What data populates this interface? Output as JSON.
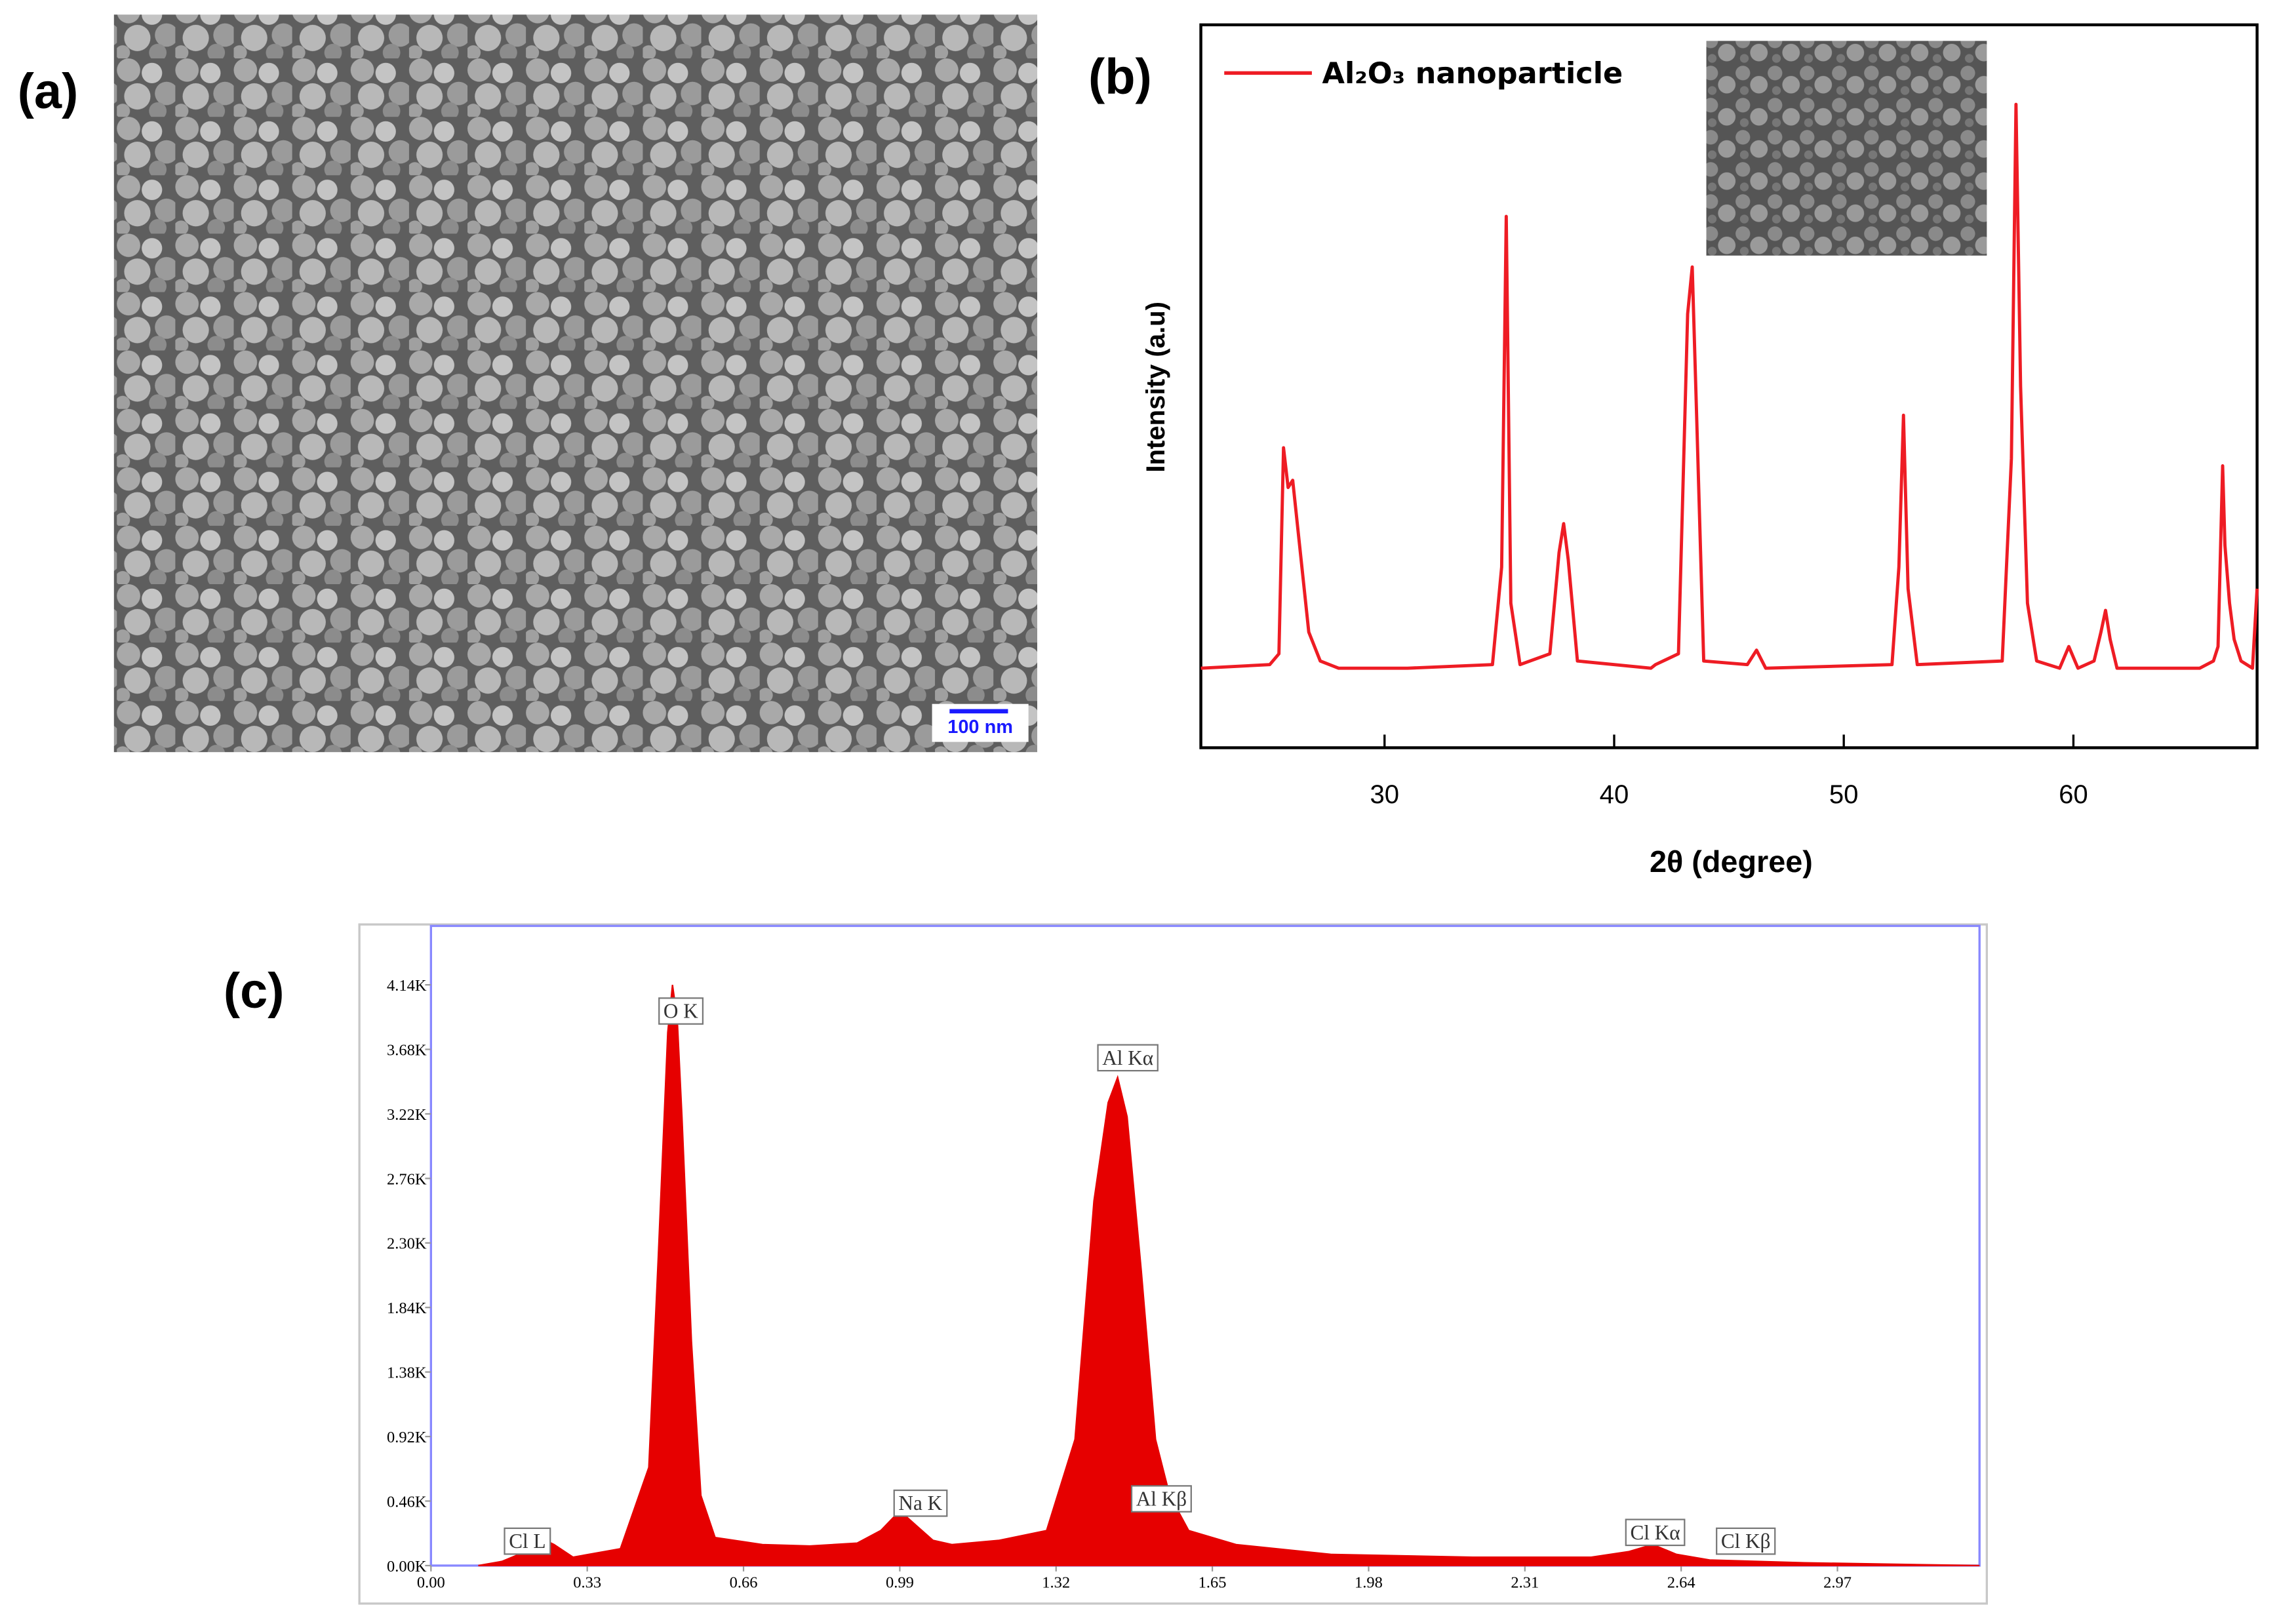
{
  "chart_data": [
    {
      "type": "image",
      "panel_label": "(a)",
      "scale_bar": "100 nm"
    },
    {
      "type": "line",
      "panel_label": "(b)",
      "xlabel": "2θ (degree)",
      "ylabel": "Intensity (a.u)",
      "xlim": [
        22,
        68
      ],
      "xticks": [
        30,
        40,
        50,
        60
      ],
      "ylim": [
        0,
        100
      ],
      "legend": "upper left",
      "x": [
        22,
        25.0,
        25.4,
        25.6,
        25.8,
        26.0,
        26.3,
        26.7,
        27.2,
        28,
        31,
        34.7,
        35.1,
        35.3,
        35.5,
        35.9,
        37.2,
        37.6,
        37.8,
        38.0,
        38.4,
        41.6,
        41.8,
        42.8,
        43.2,
        43.4,
        43.6,
        43.9,
        45.8,
        46.2,
        46.6,
        52.1,
        52.4,
        52.6,
        52.8,
        53.2,
        56.9,
        57.3,
        57.5,
        57.7,
        57.8,
        58.0,
        58.4,
        59.4,
        59.8,
        60.2,
        60.9,
        61.2,
        61.4,
        61.6,
        61.9,
        65.5,
        66.1,
        66.3,
        66.5,
        66.6,
        66.8,
        67.0,
        67.3,
        67.8,
        68
      ],
      "series": [
        {
          "name": "Al₂O₃ nanoparticle",
          "color": "#ee1c24",
          "values": [
            11,
            11.5,
            13,
            41.5,
            36,
            37,
            28,
            16,
            12,
            11,
            11,
            11.5,
            25,
            73.5,
            20,
            11.5,
            13,
            27,
            31,
            26,
            12,
            11,
            11.5,
            13,
            60,
            66.5,
            45,
            12,
            11.5,
            13.5,
            11,
            11.5,
            25,
            46,
            22,
            11.5,
            12,
            40,
            89,
            50,
            40,
            20,
            12,
            11,
            14,
            11,
            12,
            16,
            19,
            15,
            11,
            11,
            12,
            14,
            39,
            28,
            20,
            15,
            12,
            11,
            22
          ]
        }
      ]
    },
    {
      "type": "area",
      "panel_label": "(c)",
      "xlim": [
        0,
        3.27
      ],
      "xticks": [
        {
          "value": 0,
          "label": "0.00"
        },
        0.33,
        0.66,
        0.99,
        1.32,
        1.65,
        1.98,
        2.31,
        2.64,
        2.97
      ],
      "ylim": [
        0,
        4560
      ],
      "yticks": [
        {
          "value": 0,
          "label": "0.00K"
        },
        {
          "value": 460,
          "label": "0.46K"
        },
        {
          "value": 920,
          "label": "0.92K"
        },
        {
          "value": 1380,
          "label": "1.38K"
        },
        {
          "value": 1840,
          "label": "1.84K"
        },
        {
          "value": 2300,
          "label": "2.30K"
        },
        {
          "value": 2760,
          "label": "2.76K"
        },
        {
          "value": 3220,
          "label": "3.22K"
        },
        {
          "value": 3680,
          "label": "3.68K"
        },
        {
          "value": 4140,
          "label": "4.14K"
        }
      ],
      "color": "#e60000",
      "x": [
        0.1,
        0.15,
        0.2,
        0.23,
        0.26,
        0.3,
        0.4,
        0.46,
        0.48,
        0.5,
        0.51,
        0.52,
        0.53,
        0.55,
        0.57,
        0.6,
        0.7,
        0.8,
        0.9,
        0.95,
        0.99,
        1.02,
        1.06,
        1.1,
        1.2,
        1.3,
        1.36,
        1.4,
        1.43,
        1.45,
        1.47,
        1.5,
        1.53,
        1.56,
        1.6,
        1.7,
        1.9,
        2.2,
        2.45,
        2.53,
        2.58,
        2.63,
        2.7,
        2.9,
        3.27
      ],
      "values": [
        0,
        30,
        100,
        200,
        150,
        60,
        120,
        700,
        2200,
        3800,
        4140,
        3900,
        3200,
        1600,
        500,
        200,
        150,
        140,
        160,
        250,
        390,
        300,
        180,
        150,
        180,
        250,
        900,
        2600,
        3300,
        3480,
        3200,
        2100,
        900,
        500,
        250,
        150,
        80,
        60,
        60,
        100,
        150,
        80,
        40,
        20,
        0
      ],
      "peak_labels": [
        "Cl L",
        "O K",
        "Al Kα",
        "Na K",
        "Al Kβ",
        "Cl Kα",
        "Cl Kβ"
      ]
    }
  ]
}
